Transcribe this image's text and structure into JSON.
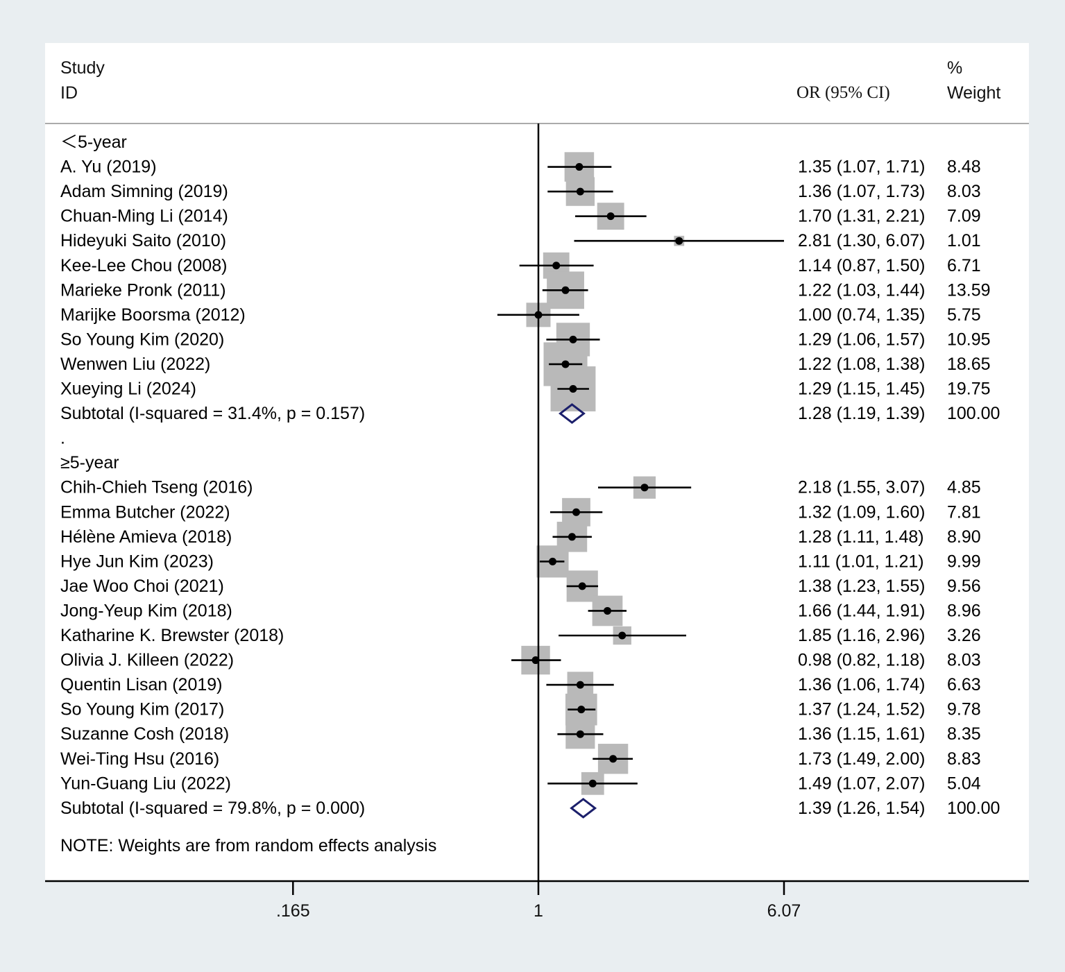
{
  "chart_data": {
    "type": "forest",
    "header": {
      "study_line1": "Study",
      "study_line2": "ID",
      "or_label": "OR (95% CI)",
      "weight_line1": "%",
      "weight_line2": "Weight"
    },
    "x_scale": "log",
    "xlim": [
      0.1,
      12
    ],
    "null_value": 1,
    "x_ticks": [
      {
        "value": 0.165,
        "label": ".165"
      },
      {
        "value": 1,
        "label": "1"
      },
      {
        "value": 6.07,
        "label": "6.07"
      }
    ],
    "groups": [
      {
        "label": "＜5-year",
        "studies": [
          {
            "name": "A. Yu (2019)",
            "or": 1.35,
            "lo": 1.07,
            "hi": 1.71,
            "or_text": "1.35 (1.07, 1.71)",
            "weight": 8.48,
            "weight_text": "8.48"
          },
          {
            "name": "Adam Simning (2019)",
            "or": 1.36,
            "lo": 1.07,
            "hi": 1.73,
            "or_text": "1.36 (1.07, 1.73)",
            "weight": 8.03,
            "weight_text": "8.03"
          },
          {
            "name": "Chuan-Ming Li (2014)",
            "or": 1.7,
            "lo": 1.31,
            "hi": 2.21,
            "or_text": "1.70 (1.31, 2.21)",
            "weight": 7.09,
            "weight_text": "7.09"
          },
          {
            "name": "Hideyuki Saito (2010)",
            "or": 2.81,
            "lo": 1.3,
            "hi": 6.07,
            "or_text": "2.81 (1.30, 6.07)",
            "weight": 1.01,
            "weight_text": "1.01"
          },
          {
            "name": "Kee-Lee Chou (2008)",
            "or": 1.14,
            "lo": 0.87,
            "hi": 1.5,
            "or_text": "1.14 (0.87, 1.50)",
            "weight": 6.71,
            "weight_text": "6.71"
          },
          {
            "name": "Marieke Pronk (2011)",
            "or": 1.22,
            "lo": 1.03,
            "hi": 1.44,
            "or_text": "1.22 (1.03, 1.44)",
            "weight": 13.59,
            "weight_text": "13.59"
          },
          {
            "name": "Marijke Boorsma (2012)",
            "or": 1.0,
            "lo": 0.74,
            "hi": 1.35,
            "or_text": "1.00 (0.74, 1.35)",
            "weight": 5.75,
            "weight_text": "5.75"
          },
          {
            "name": "So Young Kim (2020)",
            "or": 1.29,
            "lo": 1.06,
            "hi": 1.57,
            "or_text": "1.29 (1.06, 1.57)",
            "weight": 10.95,
            "weight_text": "10.95"
          },
          {
            "name": "Wenwen Liu (2022)",
            "or": 1.22,
            "lo": 1.08,
            "hi": 1.38,
            "or_text": "1.22 (1.08, 1.38)",
            "weight": 18.65,
            "weight_text": "18.65"
          },
          {
            "name": "Xueying Li (2024)",
            "or": 1.29,
            "lo": 1.15,
            "hi": 1.45,
            "or_text": "1.29 (1.15, 1.45)",
            "weight": 19.75,
            "weight_text": "19.75"
          }
        ],
        "subtotal": {
          "label": "Subtotal  (I-squared = 31.4%, p = 0.157)",
          "or": 1.28,
          "lo": 1.19,
          "hi": 1.39,
          "or_text": "1.28 (1.19, 1.39)",
          "weight_text": "100.00"
        }
      },
      {
        "label": "≥5-year",
        "studies": [
          {
            "name": "Chih-Chieh Tseng (2016)",
            "or": 2.18,
            "lo": 1.55,
            "hi": 3.07,
            "or_text": "2.18 (1.55, 3.07)",
            "weight": 4.85,
            "weight_text": "4.85"
          },
          {
            "name": "Emma Butcher (2022)",
            "or": 1.32,
            "lo": 1.09,
            "hi": 1.6,
            "or_text": "1.32 (1.09, 1.60)",
            "weight": 7.81,
            "weight_text": "7.81"
          },
          {
            "name": "Hélène Amieva (2018)",
            "or": 1.28,
            "lo": 1.11,
            "hi": 1.48,
            "or_text": "1.28 (1.11, 1.48)",
            "weight": 8.9,
            "weight_text": "8.90"
          },
          {
            "name": "Hye Jun Kim (2023)",
            "or": 1.11,
            "lo": 1.01,
            "hi": 1.21,
            "or_text": "1.11 (1.01, 1.21)",
            "weight": 9.99,
            "weight_text": "9.99"
          },
          {
            "name": "Jae Woo Choi (2021)",
            "or": 1.38,
            "lo": 1.23,
            "hi": 1.55,
            "or_text": "1.38 (1.23, 1.55)",
            "weight": 9.56,
            "weight_text": "9.56"
          },
          {
            "name": "Jong-Yeup Kim (2018)",
            "or": 1.66,
            "lo": 1.44,
            "hi": 1.91,
            "or_text": "1.66 (1.44, 1.91)",
            "weight": 8.96,
            "weight_text": "8.96"
          },
          {
            "name": "Katharine K. Brewster (2018)",
            "or": 1.85,
            "lo": 1.16,
            "hi": 2.96,
            "or_text": "1.85 (1.16, 2.96)",
            "weight": 3.26,
            "weight_text": "3.26"
          },
          {
            "name": "Olivia J. Killeen (2022)",
            "or": 0.98,
            "lo": 0.82,
            "hi": 1.18,
            "or_text": "0.98 (0.82, 1.18)",
            "weight": 8.03,
            "weight_text": "8.03"
          },
          {
            "name": "Quentin Lisan (2019)",
            "or": 1.36,
            "lo": 1.06,
            "hi": 1.74,
            "or_text": "1.36 (1.06, 1.74)",
            "weight": 6.63,
            "weight_text": "6.63"
          },
          {
            "name": "So Young Kim (2017)",
            "or": 1.37,
            "lo": 1.24,
            "hi": 1.52,
            "or_text": "1.37 (1.24, 1.52)",
            "weight": 9.78,
            "weight_text": "9.78"
          },
          {
            "name": "Suzanne Cosh (2018)",
            "or": 1.36,
            "lo": 1.15,
            "hi": 1.61,
            "or_text": "1.36 (1.15, 1.61)",
            "weight": 8.35,
            "weight_text": "8.35"
          },
          {
            "name": "Wei-Ting Hsu (2016)",
            "or": 1.73,
            "lo": 1.49,
            "hi": 2.0,
            "or_text": "1.73 (1.49, 2.00)",
            "weight": 8.83,
            "weight_text": "8.83"
          },
          {
            "name": "Yun-Guang Liu (2022)",
            "or": 1.49,
            "lo": 1.07,
            "hi": 2.07,
            "or_text": "1.49 (1.07, 2.07)",
            "weight": 5.04,
            "weight_text": "5.04"
          }
        ],
        "subtotal": {
          "label": "Subtotal  (I-squared = 79.8%, p = 0.000)",
          "or": 1.39,
          "lo": 1.26,
          "hi": 1.54,
          "or_text": "1.39 (1.26, 1.54)",
          "weight_text": "100.00"
        }
      }
    ],
    "separator_label": ".",
    "note": "NOTE: Weights are from random effects analysis",
    "colors": {
      "weight_box": "#b9b9b9",
      "ci_line": "#000000",
      "diamond": "#1b1f6b",
      "axis": "#000000",
      "header_rule": "#aaaaaa"
    }
  }
}
